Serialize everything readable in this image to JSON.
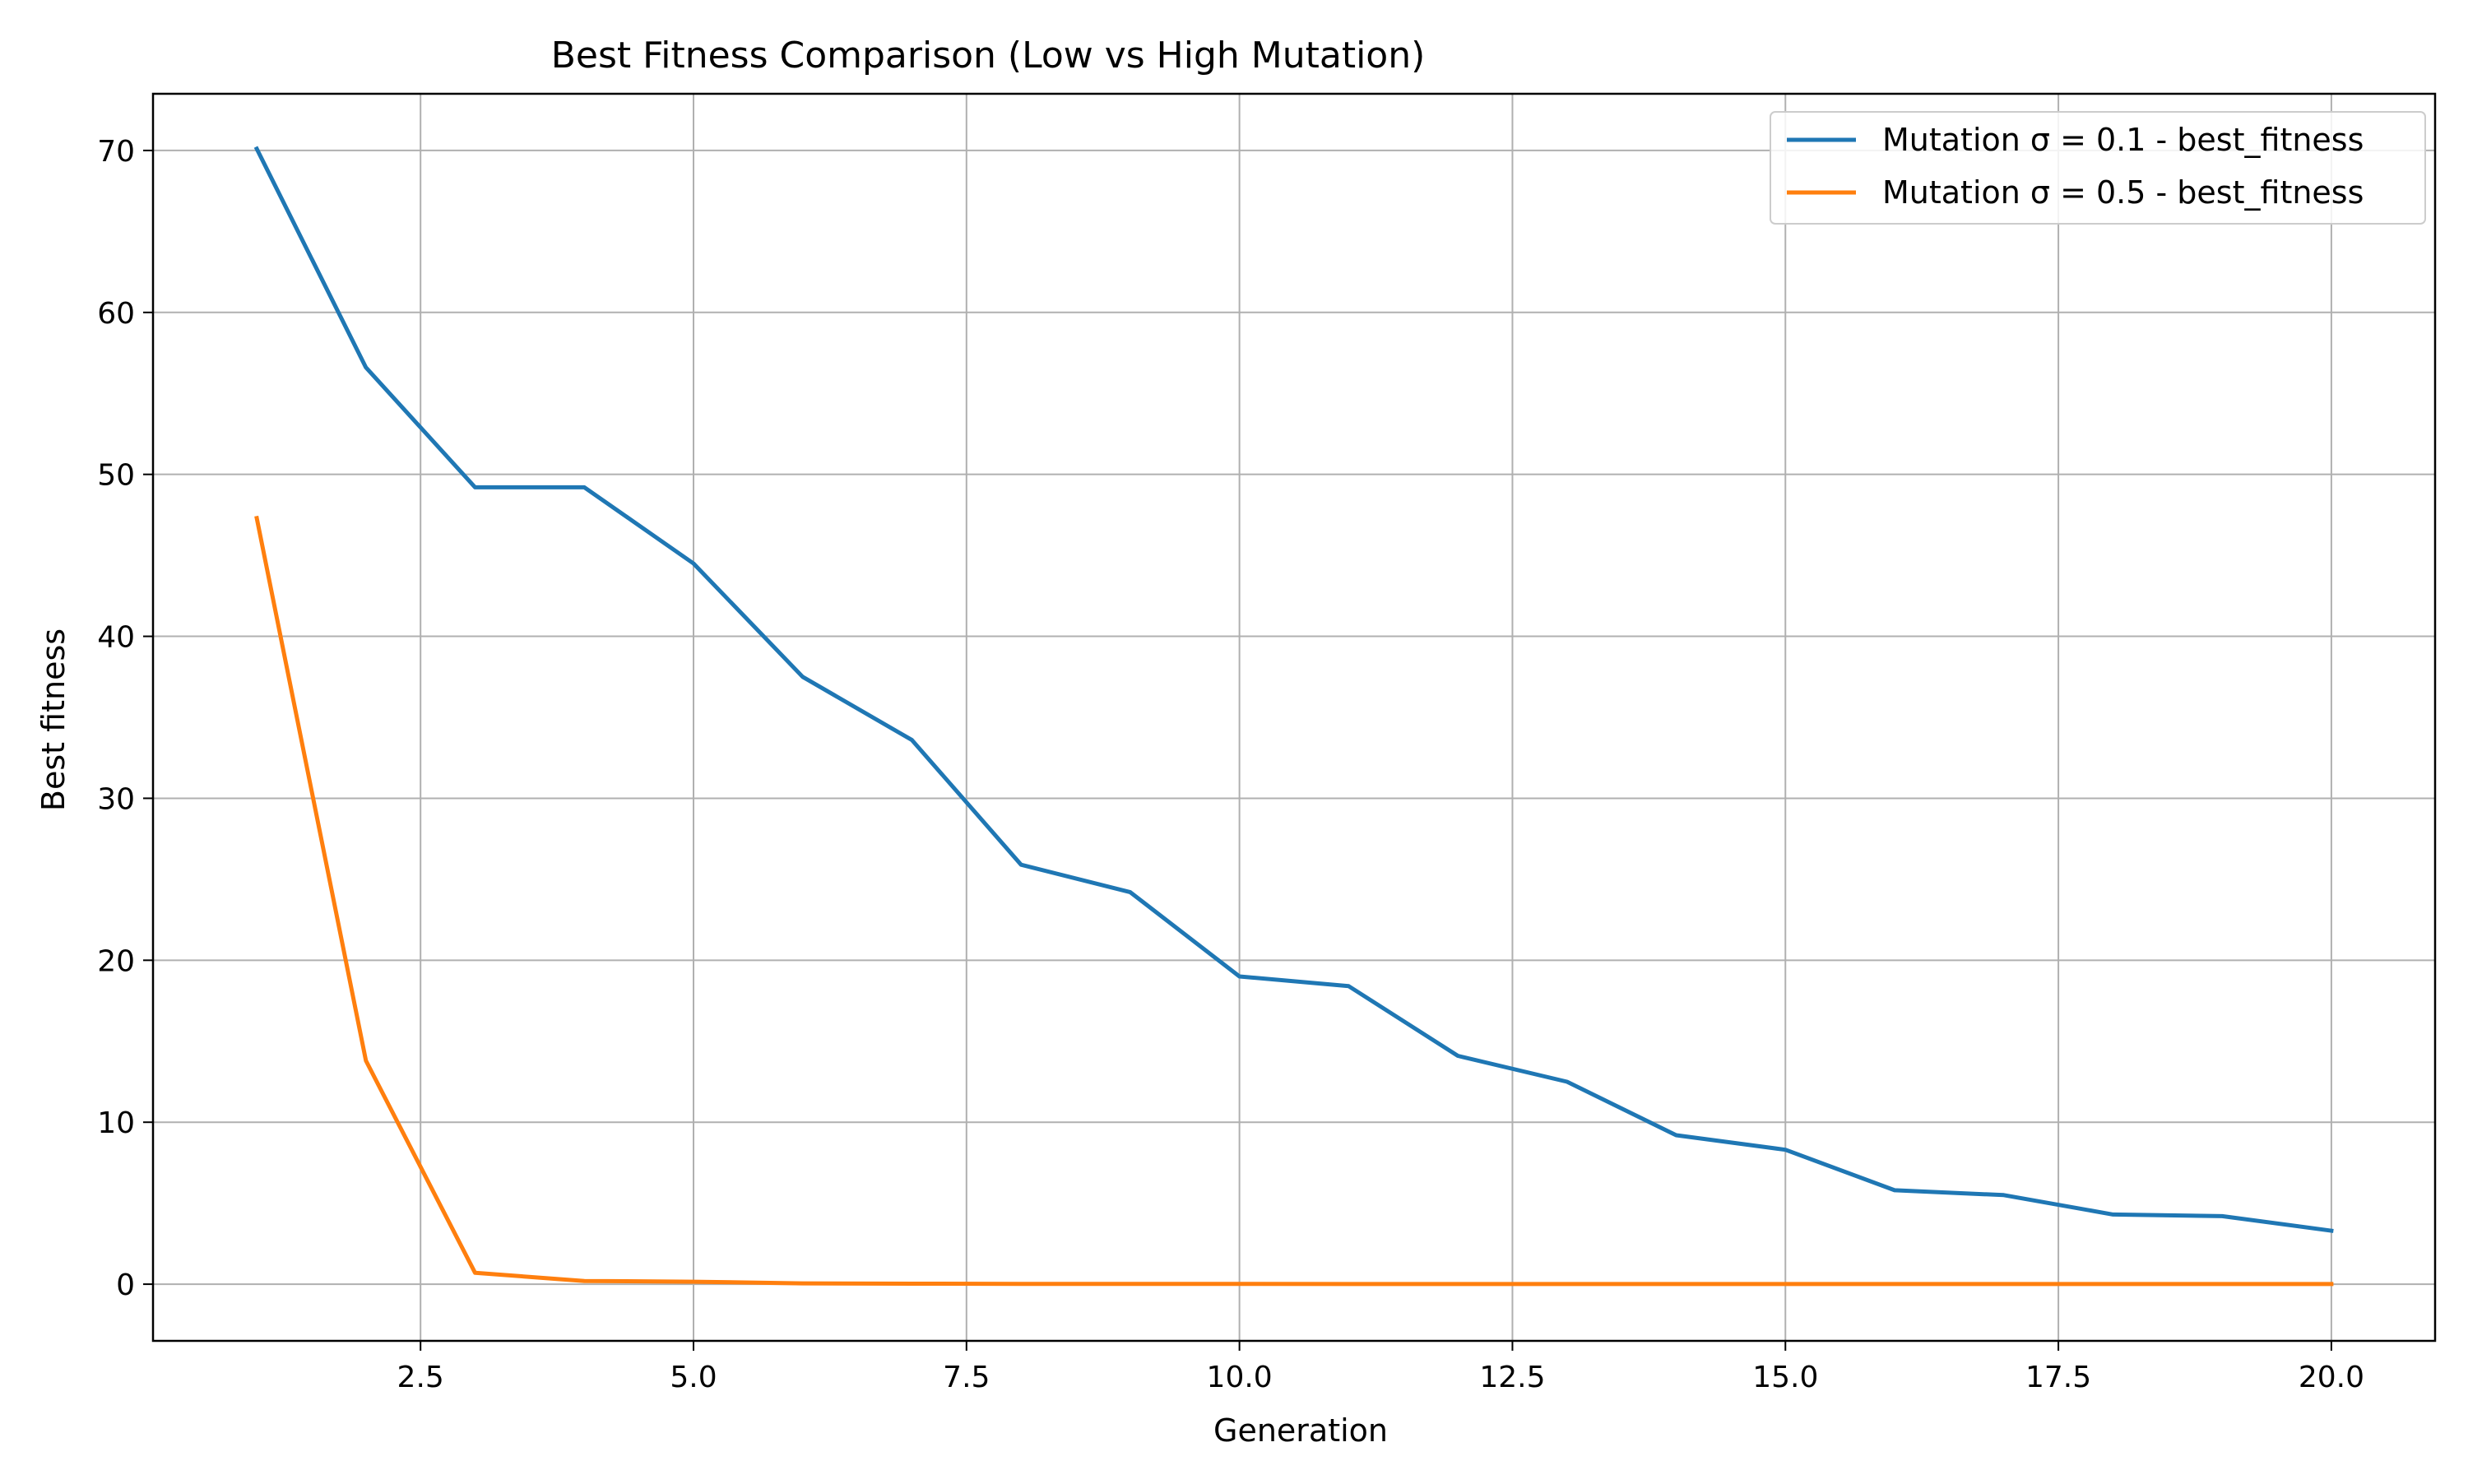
{
  "chart_data": {
    "type": "line",
    "title": "Best Fitness Comparison (Low vs High Mutation)",
    "xlabel": "Generation",
    "ylabel": "Best fitness",
    "xlim": [
      0.05,
      20.95
    ],
    "ylim": [
      -3.5,
      73.5
    ],
    "xticks": [
      2.5,
      5.0,
      7.5,
      10.0,
      12.5,
      15.0,
      17.5,
      20.0
    ],
    "xtick_labels": [
      "2.5",
      "5.0",
      "7.5",
      "10.0",
      "12.5",
      "15.0",
      "17.5",
      "20.0"
    ],
    "yticks": [
      0,
      10,
      20,
      30,
      40,
      50,
      60,
      70
    ],
    "ytick_labels": [
      "0",
      "10",
      "20",
      "30",
      "40",
      "50",
      "60",
      "70"
    ],
    "grid": true,
    "legend_position": "top-right",
    "x": [
      1,
      2,
      3,
      4,
      5,
      6,
      7,
      8,
      9,
      10,
      11,
      12,
      13,
      14,
      15,
      16,
      17,
      18,
      19,
      20
    ],
    "series": [
      {
        "name": "Mutation σ = 0.1 - best_fitness",
        "color": "#1f77b4",
        "values": [
          70.1,
          56.6,
          49.2,
          49.2,
          44.5,
          37.5,
          33.6,
          25.9,
          24.2,
          19.0,
          18.4,
          14.1,
          12.5,
          9.2,
          8.3,
          5.8,
          5.5,
          4.3,
          4.2,
          3.3
        ]
      },
      {
        "name": "Mutation σ = 0.5 - best_fitness",
        "color": "#ff7f0e",
        "values": [
          47.3,
          13.8,
          0.7,
          0.2,
          0.15,
          0.05,
          0.03,
          0.02,
          0.02,
          0.02,
          0.01,
          0.01,
          0.01,
          0.01,
          0.01,
          0.01,
          0.01,
          0.01,
          0.01,
          0.01
        ]
      }
    ]
  }
}
